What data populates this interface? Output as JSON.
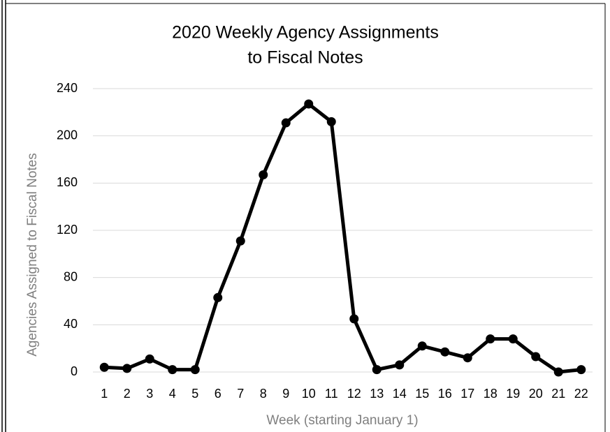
{
  "chart_data": {
    "type": "line",
    "title": [
      "2020 Weekly Agency Assignments",
      "to Fiscal Notes"
    ],
    "x_label": "Week (starting January 1)",
    "y_label": "Agencies Assigned to Fiscal Notes",
    "categories": [
      1,
      2,
      3,
      4,
      5,
      6,
      7,
      8,
      9,
      10,
      11,
      12,
      13,
      14,
      15,
      16,
      17,
      18,
      19,
      20,
      21,
      22
    ],
    "series": [
      {
        "name": "Agencies Assigned to Fiscal Notes",
        "color": "#000000",
        "values": [
          4,
          3,
          11,
          2,
          2,
          63,
          111,
          167,
          211,
          227,
          212,
          45,
          2,
          6,
          22,
          17,
          12,
          28,
          28,
          13,
          0,
          2
        ]
      }
    ],
    "ylim": [
      0,
      240
    ],
    "yticks": [
      0,
      40,
      80,
      120,
      160,
      200,
      240
    ],
    "grid": true
  }
}
